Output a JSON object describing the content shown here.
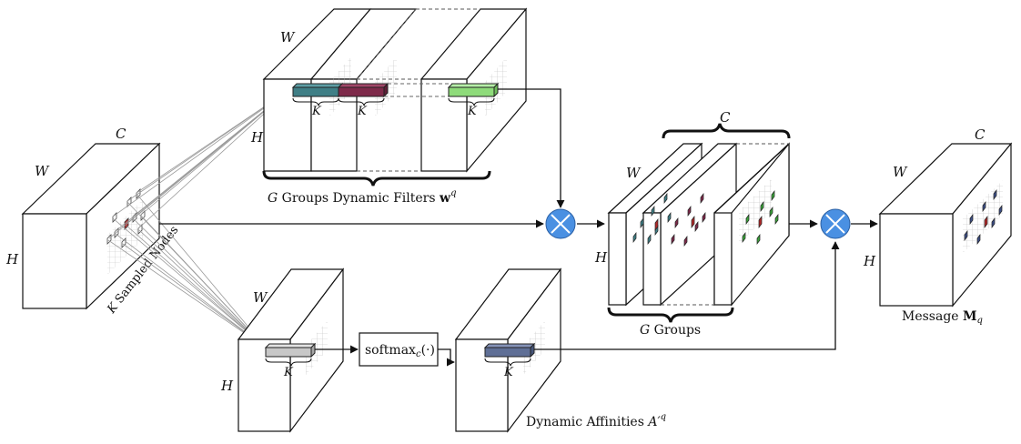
{
  "labels": {
    "input": {
      "channels": "C",
      "width": "W",
      "height": "H",
      "sampled_nodes_prefix": "K",
      "sampled_nodes_text": " Sampled Nodes"
    },
    "filters": {
      "width": "W",
      "height": "H",
      "k": "K",
      "caption_g": "G",
      "caption_text": " Groups Dynamic Filters ",
      "caption_w": "w",
      "caption_sup": "q"
    },
    "affinity": {
      "width": "W",
      "height": "H",
      "k": "K",
      "caption_text": "Dynamic Affinities ",
      "caption_a": "A′",
      "caption_sup": "q"
    },
    "softmax": {
      "name": "softmax",
      "sub": "c",
      "arg": "(·)"
    },
    "grouped": {
      "channels": "C",
      "width": "W",
      "height": "H",
      "caption_g": "G",
      "caption_text": " Groups"
    },
    "message": {
      "channels": "C",
      "width": "W",
      "height": "H",
      "caption_text": "Message ",
      "caption_m": "M",
      "caption_sub": "q"
    }
  },
  "colors": {
    "teal": "#3f7f86",
    "maroon": "#7e2a4a",
    "green": "#8edb7a",
    "gray": "#c7c7c7",
    "slate": "#5f6f96",
    "multiply": "#4a90e2",
    "red_dot": "#b02828",
    "green_dot": "#3aa33a",
    "navy_dot": "#3d4f86",
    "line": "#111111",
    "light_line": "#9a9a9a"
  },
  "icons": {
    "operator": "multiply-circle-icon"
  }
}
